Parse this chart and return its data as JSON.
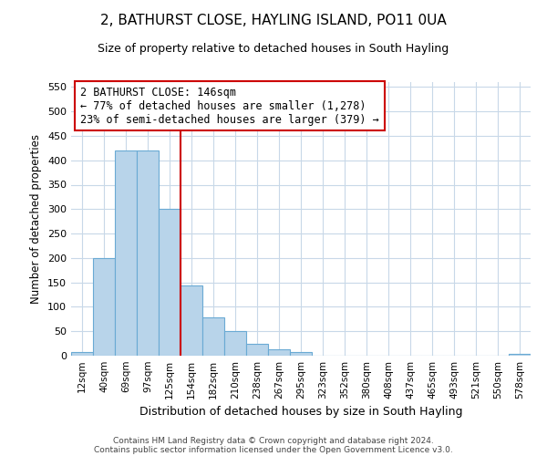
{
  "title": "2, BATHURST CLOSE, HAYLING ISLAND, PO11 0UA",
  "subtitle": "Size of property relative to detached houses in South Hayling",
  "xlabel": "Distribution of detached houses by size in South Hayling",
  "ylabel": "Number of detached properties",
  "categories": [
    "12sqm",
    "40sqm",
    "69sqm",
    "97sqm",
    "125sqm",
    "154sqm",
    "182sqm",
    "210sqm",
    "238sqm",
    "267sqm",
    "295sqm",
    "323sqm",
    "352sqm",
    "380sqm",
    "408sqm",
    "437sqm",
    "465sqm",
    "493sqm",
    "521sqm",
    "550sqm",
    "578sqm"
  ],
  "values": [
    8,
    200,
    420,
    420,
    300,
    143,
    78,
    50,
    25,
    13,
    8,
    0,
    0,
    0,
    0,
    0,
    0,
    0,
    0,
    0,
    3
  ],
  "bar_color": "#b8d4ea",
  "bar_edge_color": "#6aaad4",
  "vline_color": "#cc0000",
  "annotation_line1": "2 BATHURST CLOSE: 146sqm",
  "annotation_line2": "← 77% of detached houses are smaller (1,278)",
  "annotation_line3": "23% of semi-detached houses are larger (379) →",
  "annotation_box_color": "#ffffff",
  "annotation_box_edge": "#cc0000",
  "ylim": [
    0,
    560
  ],
  "yticks": [
    0,
    50,
    100,
    150,
    200,
    250,
    300,
    350,
    400,
    450,
    500,
    550
  ],
  "footer1": "Contains HM Land Registry data © Crown copyright and database right 2024.",
  "footer2": "Contains public sector information licensed under the Open Government Licence v3.0.",
  "bg_color": "#ffffff",
  "grid_color": "#c8d8e8"
}
